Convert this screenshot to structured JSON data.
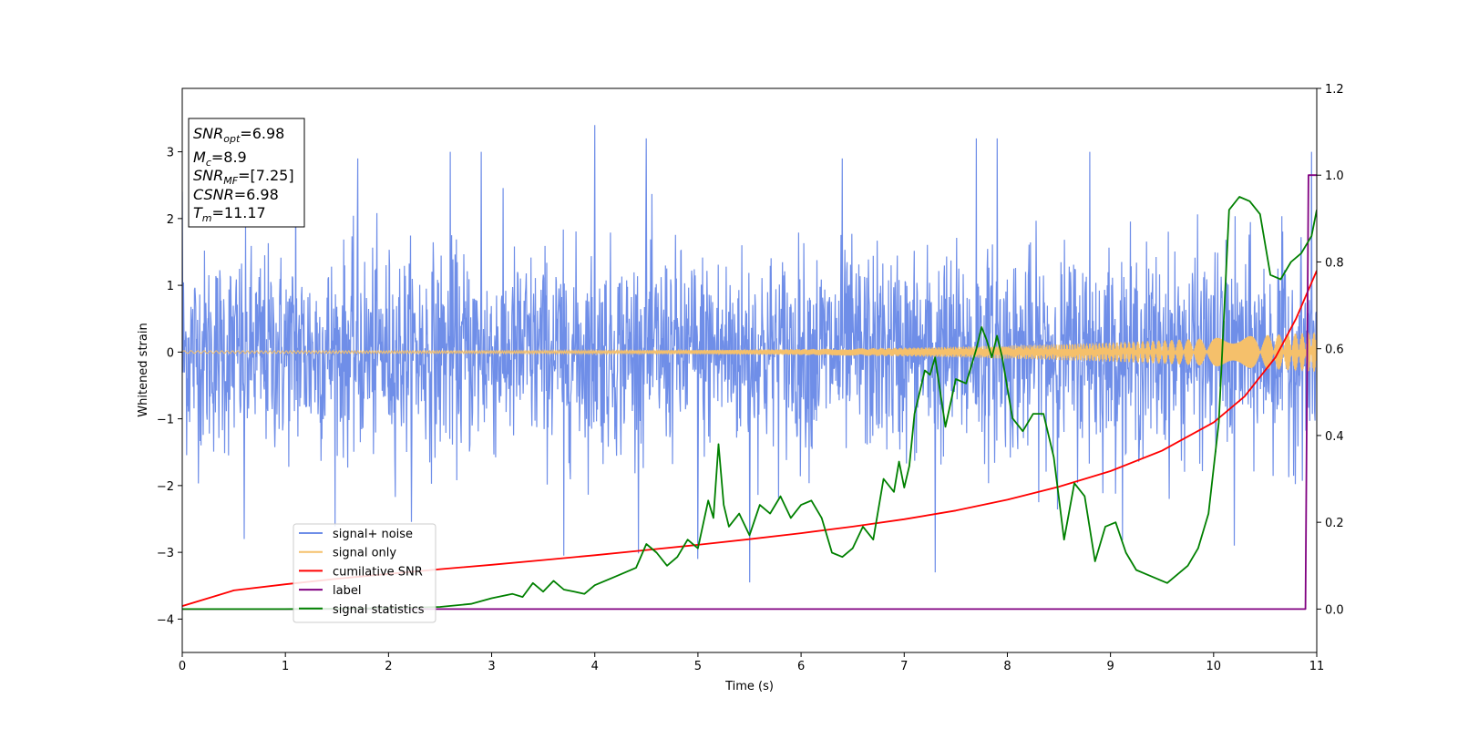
{
  "chart_data": {
    "type": "line",
    "title": "",
    "xlabel": "Time (s)",
    "ylabel": "Whitened strain",
    "xlim": [
      0,
      11
    ],
    "ylim": [
      -4.5,
      3.95
    ],
    "y2lim": [
      -0.1,
      1.2
    ],
    "xticks": [
      "0",
      "1",
      "2",
      "3",
      "4",
      "5",
      "6",
      "7",
      "8",
      "9",
      "10",
      "11"
    ],
    "yticks": [
      "−4",
      "−3",
      "−2",
      "−1",
      "0",
      "1",
      "2",
      "3"
    ],
    "y2ticks": [
      "0.0",
      "0.2",
      "0.4",
      "0.6",
      "0.8",
      "1.0",
      "1.2"
    ],
    "grid": false,
    "legend_position": "lower-left",
    "annotation": {
      "snr_opt": {
        "base": "SNR",
        "sub": "opt",
        "value": "=6.98"
      },
      "mc": {
        "base": "M",
        "sub": "c",
        "value": "=8.9"
      },
      "snr_mf": {
        "base": "SNR",
        "sub": "MF",
        "value": "=[7.25]"
      },
      "csnr": {
        "base": "CSNR",
        "value": "=6.98"
      },
      "tm": {
        "base": "T",
        "sub": "m",
        "value": "=11.17"
      }
    },
    "series": [
      {
        "name": "signal+ noise",
        "color": "#6f8ee8",
        "axis": "left",
        "kind": "noise",
        "std": 0.75,
        "peak_samples": [
          [
            0.0,
            2.4
          ],
          [
            0.6,
            -2.8
          ],
          [
            1.1,
            2.8
          ],
          [
            1.7,
            2.9
          ],
          [
            2.6,
            3.0
          ],
          [
            2.9,
            3.0
          ],
          [
            3.7,
            -3.05
          ],
          [
            4.0,
            3.5
          ],
          [
            4.5,
            3.2
          ],
          [
            5.0,
            -3.1
          ],
          [
            5.5,
            -3.45
          ],
          [
            6.4,
            2.9
          ],
          [
            7.3,
            -3.3
          ],
          [
            7.7,
            3.2
          ],
          [
            7.9,
            3.2
          ],
          [
            8.8,
            3.0
          ],
          [
            10.2,
            -2.9
          ],
          [
            10.95,
            3.0
          ]
        ]
      },
      {
        "name": "signal only",
        "color": "#f5c06b",
        "axis": "left",
        "kind": "chirp",
        "amplitude_start": 0.02,
        "amplitude_end": 0.3
      },
      {
        "name": "cumilative SNR",
        "color": "#ff0000",
        "axis": "right",
        "x": [
          0,
          0.5,
          1,
          1.5,
          2,
          2.5,
          3,
          3.5,
          4,
          4.5,
          5,
          5.5,
          6,
          6.5,
          7,
          7.5,
          8,
          8.5,
          9,
          9.5,
          10,
          10.3,
          10.6,
          10.8,
          11
        ],
        "y": [
          0.007,
          0.043,
          0.057,
          0.07,
          0.081,
          0.092,
          0.102,
          0.113,
          0.124,
          0.136,
          0.148,
          0.161,
          0.175,
          0.19,
          0.207,
          0.227,
          0.252,
          0.282,
          0.318,
          0.365,
          0.43,
          0.49,
          0.58,
          0.67,
          0.78
        ]
      },
      {
        "name": "label",
        "color": "#800080",
        "axis": "right",
        "x": [
          0,
          10.89,
          10.92,
          11
        ],
        "y": [
          0.0,
          0.0,
          1.0,
          1.0
        ]
      },
      {
        "name": "signal statistics",
        "color": "#008000",
        "axis": "right",
        "x": [
          0,
          1,
          2,
          2.5,
          2.8,
          3.0,
          3.2,
          3.3,
          3.4,
          3.5,
          3.6,
          3.7,
          3.8,
          3.9,
          4.0,
          4.2,
          4.4,
          4.5,
          4.6,
          4.7,
          4.8,
          4.9,
          5.0,
          5.1,
          5.15,
          5.2,
          5.25,
          5.3,
          5.4,
          5.5,
          5.6,
          5.7,
          5.8,
          5.9,
          6.0,
          6.1,
          6.2,
          6.3,
          6.4,
          6.5,
          6.6,
          6.7,
          6.8,
          6.9,
          6.95,
          7.0,
          7.05,
          7.1,
          7.15,
          7.2,
          7.25,
          7.3,
          7.4,
          7.5,
          7.6,
          7.7,
          7.75,
          7.8,
          7.85,
          7.9,
          7.95,
          8.05,
          8.15,
          8.25,
          8.35,
          8.45,
          8.55,
          8.65,
          8.75,
          8.85,
          8.95,
          9.05,
          9.15,
          9.25,
          9.35,
          9.45,
          9.55,
          9.65,
          9.75,
          9.85,
          9.95,
          10.05,
          10.15,
          10.25,
          10.35,
          10.45,
          10.55,
          10.65,
          10.75,
          10.85,
          10.95,
          11.0
        ],
        "y": [
          0.0,
          0.0,
          0.002,
          0.005,
          0.012,
          0.025,
          0.035,
          0.028,
          0.06,
          0.04,
          0.065,
          0.045,
          0.04,
          0.035,
          0.055,
          0.075,
          0.095,
          0.15,
          0.13,
          0.1,
          0.12,
          0.16,
          0.14,
          0.25,
          0.21,
          0.38,
          0.24,
          0.19,
          0.22,
          0.17,
          0.24,
          0.22,
          0.26,
          0.21,
          0.24,
          0.25,
          0.21,
          0.13,
          0.12,
          0.14,
          0.19,
          0.16,
          0.3,
          0.27,
          0.34,
          0.28,
          0.33,
          0.45,
          0.5,
          0.55,
          0.54,
          0.58,
          0.42,
          0.53,
          0.52,
          0.6,
          0.65,
          0.62,
          0.58,
          0.63,
          0.58,
          0.44,
          0.41,
          0.45,
          0.45,
          0.35,
          0.16,
          0.29,
          0.26,
          0.11,
          0.19,
          0.2,
          0.13,
          0.09,
          0.08,
          0.07,
          0.06,
          0.08,
          0.1,
          0.14,
          0.22,
          0.43,
          0.92,
          0.95,
          0.94,
          0.91,
          0.77,
          0.76,
          0.8,
          0.82,
          0.86,
          0.92
        ]
      }
    ]
  }
}
